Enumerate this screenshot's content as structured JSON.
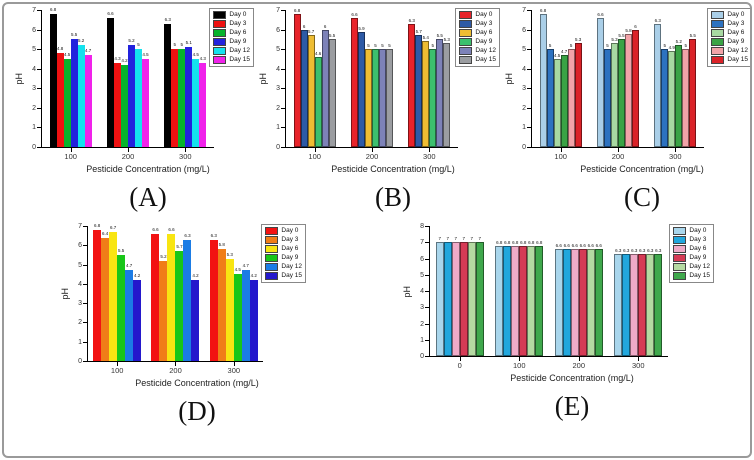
{
  "figure": {
    "xlabel": "Pesticide Concentration (mg/L)",
    "ylabel": "pH",
    "legend_labels": [
      "Day 0",
      "Day 3",
      "Day 6",
      "Day 9",
      "Day 12",
      "Day 15"
    ]
  },
  "chart_data": [
    {
      "type": "bar",
      "panel_label": "(A)",
      "xlabel": "Pesticide Concentration (mg/L)",
      "ylabel": "pH",
      "ylim": [
        0,
        7
      ],
      "grid": false,
      "legend_position": "top-right",
      "bar_border": false,
      "categories": [
        "100",
        "200",
        "300"
      ],
      "series": [
        {
          "name": "Day 0",
          "color": "#000000",
          "values": [
            6.8,
            6.6,
            6.3
          ]
        },
        {
          "name": "Day 3",
          "color": "#ee1111",
          "values": [
            4.8,
            4.3,
            5.0
          ]
        },
        {
          "name": "Day 6",
          "color": "#06b32b",
          "values": [
            4.5,
            4.2,
            5.0
          ]
        },
        {
          "name": "Day 9",
          "color": "#2222dd",
          "values": [
            5.5,
            5.2,
            5.1
          ]
        },
        {
          "name": "Day 12",
          "color": "#14e2ee",
          "values": [
            5.2,
            5.0,
            4.5
          ]
        },
        {
          "name": "Day 15",
          "color": "#f022ea",
          "values": [
            4.7,
            4.5,
            4.3
          ]
        }
      ]
    },
    {
      "type": "bar",
      "panel_label": "(B)",
      "xlabel": "Pesticide Concentration (mg/L)",
      "ylabel": "pH",
      "ylim": [
        0,
        7
      ],
      "grid": false,
      "legend_position": "top-right",
      "bar_border": true,
      "categories": [
        "100",
        "200",
        "300"
      ],
      "series": [
        {
          "name": "Day 0",
          "color": "#e8232a",
          "values": [
            6.8,
            6.6,
            6.3
          ]
        },
        {
          "name": "Day 3",
          "color": "#2d5aa6",
          "values": [
            6.0,
            5.9,
            5.7
          ]
        },
        {
          "name": "Day 6",
          "color": "#eebd33",
          "values": [
            5.7,
            5.0,
            5.4
          ]
        },
        {
          "name": "Day 9",
          "color": "#3cc06e",
          "values": [
            4.6,
            5.0,
            5.0
          ]
        },
        {
          "name": "Day 12",
          "color": "#7d82b8",
          "values": [
            6.0,
            5.0,
            5.5
          ]
        },
        {
          "name": "Day 15",
          "color": "#9b9da1",
          "values": [
            5.5,
            5.0,
            5.3
          ]
        }
      ]
    },
    {
      "type": "bar",
      "panel_label": "(C)",
      "xlabel": "Pesticide Concentration (mg/L)",
      "ylabel": "pH",
      "ylim": [
        0,
        7
      ],
      "grid": false,
      "legend_position": "top-right",
      "bar_border": true,
      "categories": [
        "100",
        "200",
        "300"
      ],
      "series": [
        {
          "name": "Day 0",
          "color": "#aacfe8",
          "values": [
            6.8,
            6.6,
            6.3
          ]
        },
        {
          "name": "Day 3",
          "color": "#2d72c0",
          "values": [
            5.0,
            5.0,
            5.0
          ]
        },
        {
          "name": "Day 6",
          "color": "#a8d9a2",
          "values": [
            4.5,
            5.3,
            4.9
          ]
        },
        {
          "name": "Day 9",
          "color": "#3aa345",
          "values": [
            4.7,
            5.5,
            5.2
          ]
        },
        {
          "name": "Day 12",
          "color": "#f2a3a8",
          "values": [
            5.0,
            5.8,
            5.0
          ]
        },
        {
          "name": "Day 15",
          "color": "#da2228",
          "values": [
            5.3,
            6.0,
            5.5
          ]
        }
      ]
    },
    {
      "type": "bar",
      "panel_label": "(D)",
      "xlabel": "Pesticide Concentration (mg/L)",
      "ylabel": "pH",
      "ylim": [
        0,
        7
      ],
      "grid": false,
      "legend_position": "top-right",
      "bar_border": false,
      "categories": [
        "100",
        "200",
        "300"
      ],
      "series": [
        {
          "name": "Day 0",
          "color": "#f21212",
          "values": [
            6.8,
            6.6,
            6.3
          ]
        },
        {
          "name": "Day 3",
          "color": "#f07d18",
          "values": [
            6.4,
            5.2,
            5.8
          ]
        },
        {
          "name": "Day 6",
          "color": "#f8e512",
          "values": [
            6.7,
            6.6,
            5.3
          ]
        },
        {
          "name": "Day 9",
          "color": "#18c618",
          "values": [
            5.5,
            5.7,
            4.5
          ]
        },
        {
          "name": "Day 12",
          "color": "#1b7ce5",
          "values": [
            4.7,
            6.3,
            4.7
          ]
        },
        {
          "name": "Day 15",
          "color": "#2418cc",
          "values": [
            4.2,
            4.2,
            4.2
          ]
        }
      ]
    },
    {
      "type": "bar",
      "panel_label": "(E)",
      "xlabel": "Pesticide Concentration (mg/L)",
      "ylabel": "pH",
      "ylim": [
        0,
        8
      ],
      "grid": false,
      "legend_position": "top-right",
      "bar_border": true,
      "categories": [
        "0",
        "100",
        "200",
        "300"
      ],
      "series": [
        {
          "name": "Day 0",
          "color": "#a9d6ec",
          "values": [
            7.0,
            6.8,
            6.6,
            6.3
          ]
        },
        {
          "name": "Day 3",
          "color": "#22a7dd",
          "values": [
            7.0,
            6.8,
            6.6,
            6.3
          ]
        },
        {
          "name": "Day 6",
          "color": "#f0abc8",
          "values": [
            7.0,
            6.8,
            6.6,
            6.3
          ]
        },
        {
          "name": "Day 9",
          "color": "#d63b55",
          "values": [
            7.0,
            6.8,
            6.6,
            6.3
          ]
        },
        {
          "name": "Day 12",
          "color": "#b5daa2",
          "values": [
            7.0,
            6.8,
            6.6,
            6.3
          ]
        },
        {
          "name": "Day 15",
          "color": "#3fa84c",
          "values": [
            7.0,
            6.8,
            6.6,
            6.3
          ]
        }
      ]
    }
  ]
}
